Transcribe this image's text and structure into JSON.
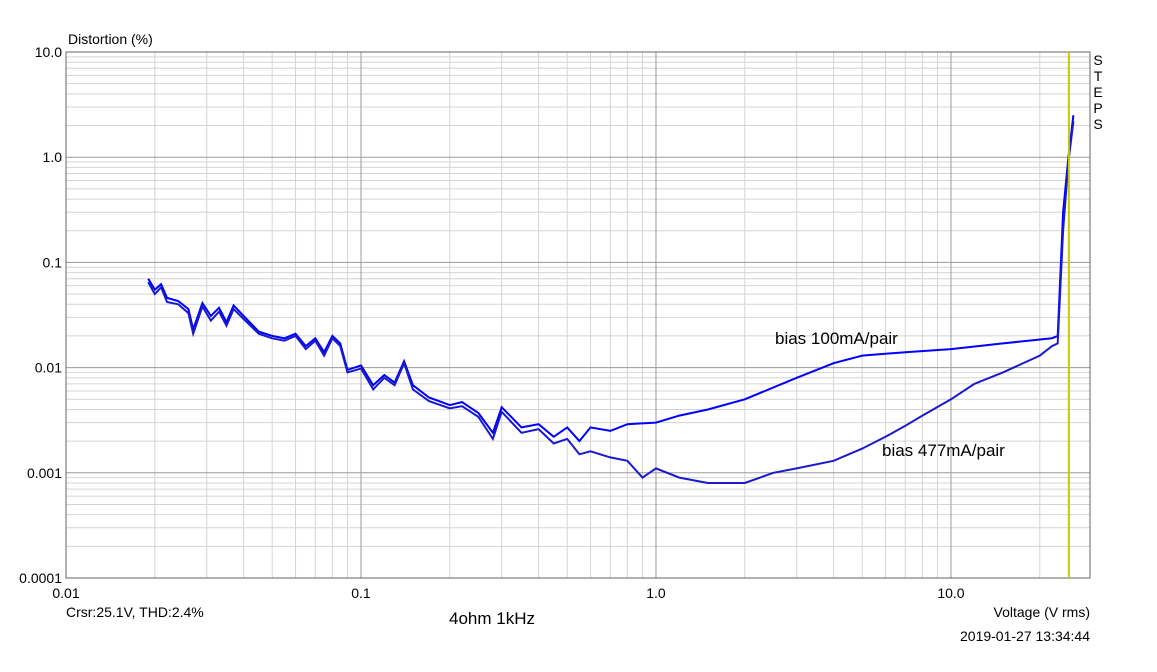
{
  "chart_data": {
    "type": "line",
    "y_axis_label": "Distortion (%)",
    "x_axis_label": "Voltage (V rms)",
    "title": "4ohm 1kHz",
    "cursor_text": "Crsr:25.1V, THD:2.4%",
    "side_label": "STEPS",
    "timestamp": "2019-01-27  13:34:44",
    "log_x": true,
    "log_y": true,
    "grid": true,
    "cursor": 25.1,
    "cursor_color": "#c8c800",
    "xlim": [
      0.01,
      29.6
    ],
    "ylim": [
      0.0001,
      10
    ],
    "xticks": [
      0.01,
      0.1,
      {
        "value": 1,
        "label": "1.0"
      },
      {
        "value": 10,
        "label": "10.0"
      }
    ],
    "yticks": [
      0.0001,
      0.001,
      0.01,
      0.1,
      {
        "value": 1,
        "label": "1.0"
      },
      {
        "value": 10,
        "label": "10.0"
      }
    ],
    "series": [
      {
        "name": "bias 100mA/pair",
        "color": "#0000ff",
        "x": [
          0.019,
          0.02,
          0.021,
          0.022,
          0.024,
          0.026,
          0.027,
          0.029,
          0.031,
          0.033,
          0.035,
          0.037,
          0.04,
          0.045,
          0.05,
          0.055,
          0.06,
          0.065,
          0.07,
          0.075,
          0.08,
          0.085,
          0.09,
          0.1,
          0.11,
          0.12,
          0.13,
          0.14,
          0.15,
          0.17,
          0.2,
          0.22,
          0.25,
          0.28,
          0.3,
          0.35,
          0.4,
          0.45,
          0.5,
          0.55,
          0.6,
          0.7,
          0.8,
          1.0,
          1.2,
          1.5,
          2,
          3,
          4,
          5,
          7,
          10,
          15,
          22,
          23,
          24,
          25,
          26
        ],
        "values": [
          0.07,
          0.055,
          0.062,
          0.046,
          0.043,
          0.036,
          0.023,
          0.041,
          0.031,
          0.037,
          0.027,
          0.039,
          0.031,
          0.022,
          0.02,
          0.019,
          0.021,
          0.016,
          0.019,
          0.014,
          0.02,
          0.017,
          0.0095,
          0.0105,
          0.0068,
          0.0085,
          0.0072,
          0.0115,
          0.0068,
          0.0052,
          0.0044,
          0.0047,
          0.0037,
          0.0024,
          0.0042,
          0.0027,
          0.0029,
          0.0022,
          0.0027,
          0.002,
          0.0027,
          0.0025,
          0.0029,
          0.003,
          0.0035,
          0.004,
          0.005,
          0.008,
          0.011,
          0.013,
          0.014,
          0.015,
          0.017,
          0.019,
          0.02,
          0.3,
          1.0,
          2.5
        ]
      },
      {
        "name": "bias 477mA/pair",
        "color": "#1a1acc",
        "x": [
          0.019,
          0.02,
          0.021,
          0.022,
          0.024,
          0.026,
          0.027,
          0.029,
          0.031,
          0.033,
          0.035,
          0.037,
          0.04,
          0.045,
          0.05,
          0.055,
          0.06,
          0.065,
          0.07,
          0.075,
          0.08,
          0.085,
          0.09,
          0.1,
          0.11,
          0.12,
          0.13,
          0.14,
          0.15,
          0.17,
          0.2,
          0.22,
          0.25,
          0.28,
          0.3,
          0.35,
          0.4,
          0.45,
          0.5,
          0.55,
          0.6,
          0.7,
          0.8,
          0.9,
          1.0,
          1.2,
          1.5,
          2,
          2.5,
          3,
          4,
          5,
          6,
          7,
          8,
          10,
          12,
          15,
          20,
          22,
          23,
          24,
          25,
          26
        ],
        "values": [
          0.065,
          0.05,
          0.058,
          0.042,
          0.04,
          0.033,
          0.021,
          0.038,
          0.028,
          0.034,
          0.025,
          0.036,
          0.029,
          0.021,
          0.019,
          0.018,
          0.02,
          0.015,
          0.018,
          0.013,
          0.019,
          0.016,
          0.009,
          0.0098,
          0.0062,
          0.008,
          0.0068,
          0.011,
          0.0062,
          0.0048,
          0.0041,
          0.0043,
          0.0034,
          0.0021,
          0.0038,
          0.0024,
          0.0026,
          0.0019,
          0.0021,
          0.0015,
          0.0016,
          0.0014,
          0.0013,
          0.0009,
          0.0011,
          0.0009,
          0.0008,
          0.0008,
          0.001,
          0.0011,
          0.0013,
          0.0017,
          0.0022,
          0.0028,
          0.0035,
          0.005,
          0.007,
          0.009,
          0.013,
          0.016,
          0.017,
          0.2,
          0.9,
          2.2
        ]
      }
    ]
  }
}
